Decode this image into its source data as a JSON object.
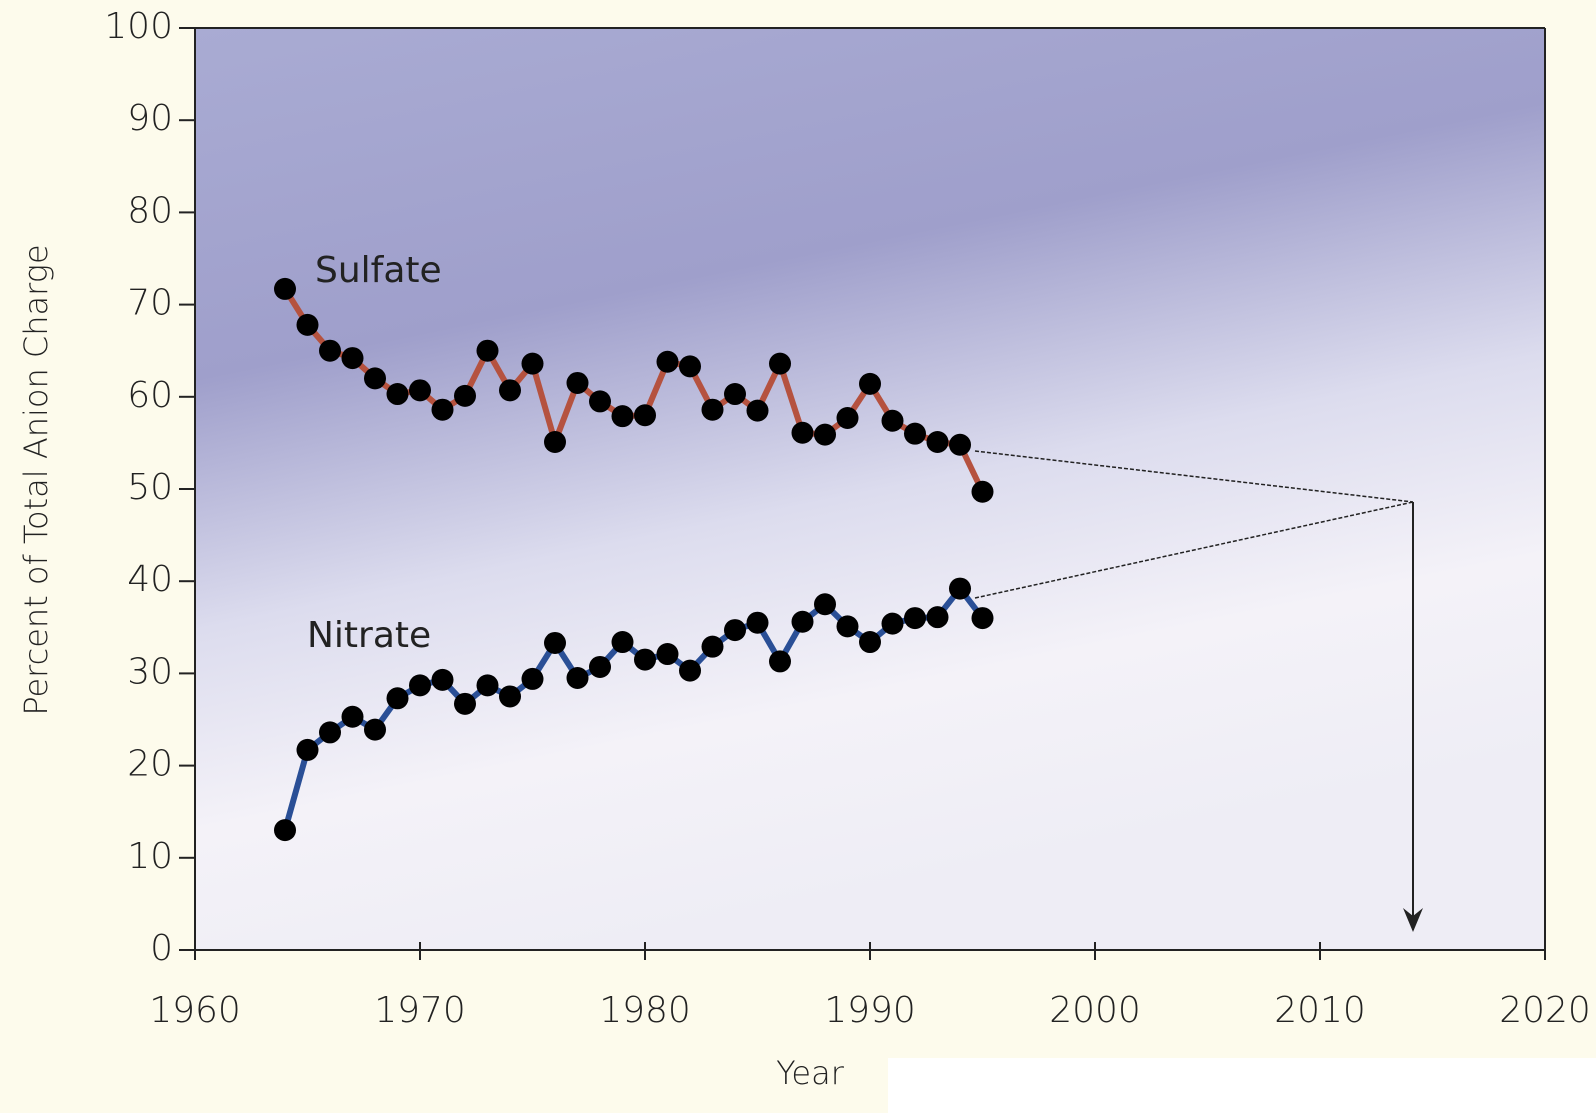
{
  "chart_data": {
    "type": "line",
    "x_label": "Year",
    "y_label": "Percent of Total Anion Charge",
    "x": [
      1964,
      1965,
      1966,
      1967,
      1968,
      1969,
      1970,
      1971,
      1972,
      1973,
      1974,
      1975,
      1976,
      1977,
      1978,
      1979,
      1980,
      1981,
      1982,
      1983,
      1984,
      1985,
      1986,
      1987,
      1988,
      1989,
      1990,
      1991,
      1992,
      1993,
      1994,
      1995
    ],
    "series": [
      {
        "name": "Sulfate",
        "color": "#b5523f",
        "values": [
          71.7,
          67.8,
          65,
          64.2,
          62,
          60.3,
          60.7,
          58.6,
          60.1,
          65,
          60.7,
          63.6,
          55.1,
          61.5,
          59.5,
          57.9,
          58,
          63.8,
          63.3,
          58.6,
          60.3,
          58.5,
          63.6,
          56.1,
          55.9,
          57.7,
          61.4,
          57.4,
          56,
          55.1,
          54.8,
          49.7
        ]
      },
      {
        "name": "Nitrate",
        "color": "#2a4f96",
        "values": [
          13,
          21.7,
          23.6,
          25.3,
          23.9,
          27.3,
          28.7,
          29.3,
          26.7,
          28.7,
          27.5,
          29.4,
          33.3,
          29.5,
          30.7,
          33.4,
          31.5,
          32.1,
          30.3,
          32.9,
          34.7,
          35.5,
          31.3,
          35.6,
          37.5,
          35.1,
          33.4,
          35.4,
          36,
          36.1,
          39.2,
          36
        ]
      }
    ],
    "marker_color": "#000000",
    "xlim": [
      1960,
      2020
    ],
    "xticks": [
      1960,
      1970,
      1980,
      1990,
      2000,
      2010,
      2020
    ],
    "ylim": [
      0,
      100
    ],
    "yticks": [
      0,
      10,
      20,
      30,
      40,
      50,
      60,
      70,
      80,
      90,
      100
    ]
  }
}
